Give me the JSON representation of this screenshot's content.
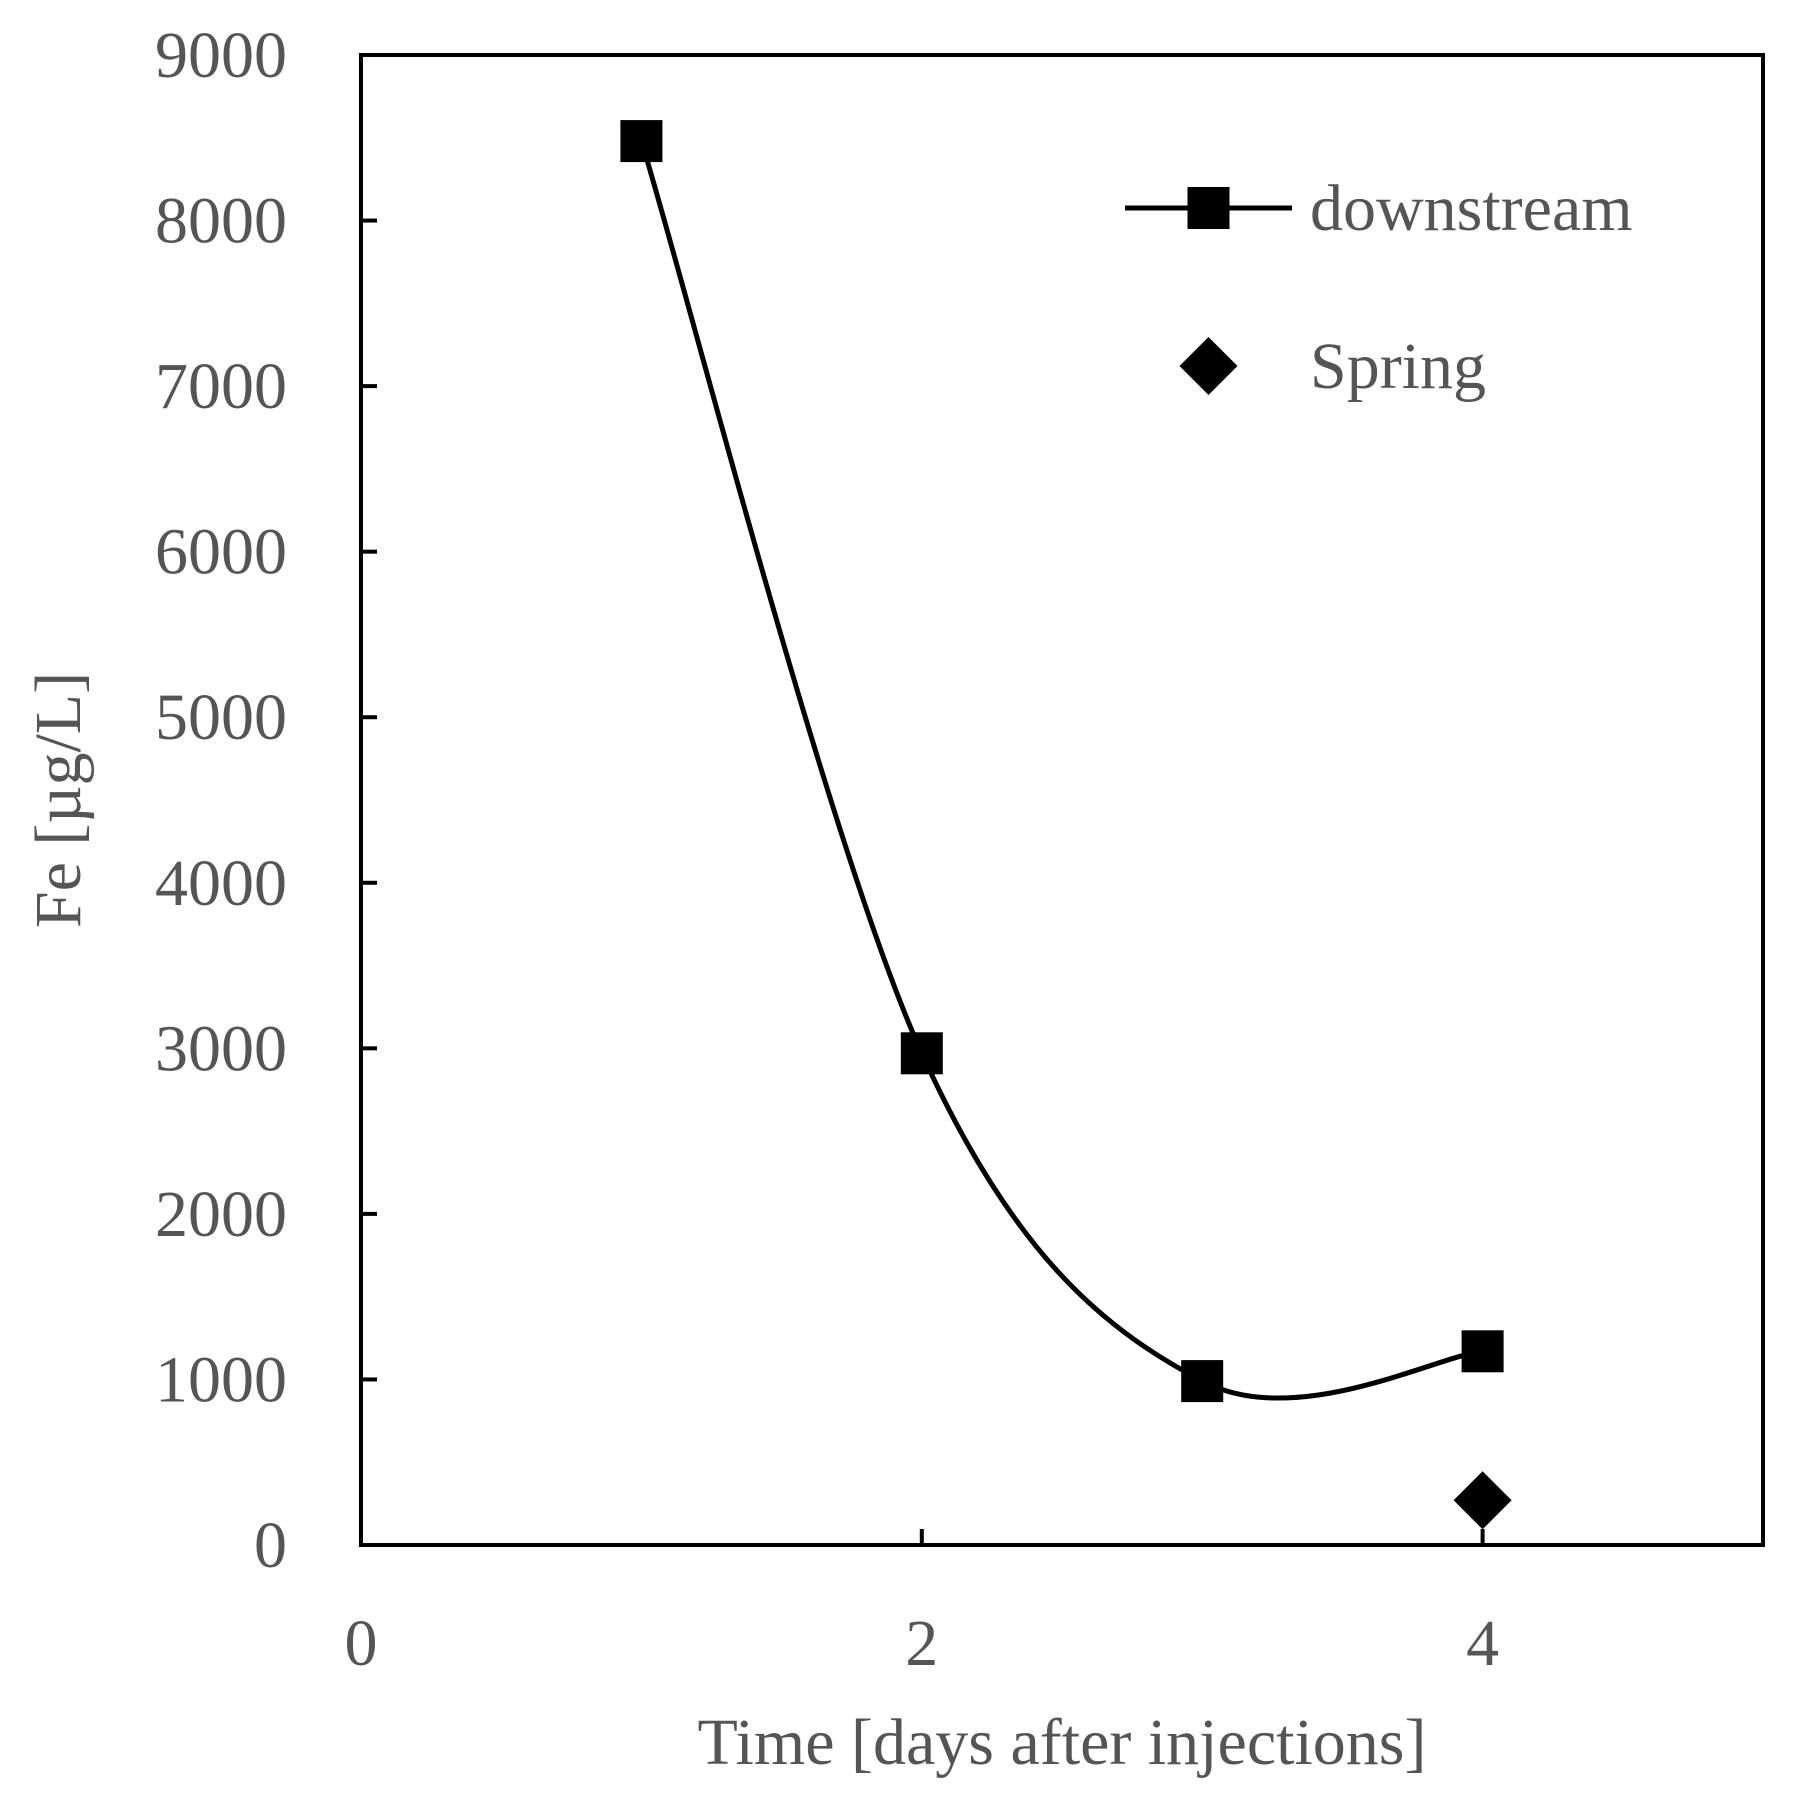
{
  "chart_data": {
    "type": "scatter",
    "xlabel": "Time [days after injections]",
    "ylabel": "Fe [µg/L]",
    "xlim": [
      0,
      5
    ],
    "ylim": [
      0,
      9000
    ],
    "x_ticks": [
      0,
      2,
      4
    ],
    "y_ticks": [
      0,
      1000,
      2000,
      3000,
      4000,
      5000,
      6000,
      7000,
      8000,
      9000
    ],
    "grid": false,
    "legend_position": "top-right",
    "series": [
      {
        "name": "downstream",
        "marker": "square",
        "line": "smooth",
        "color": "#000000",
        "x": [
          1,
          2,
          3,
          4
        ],
        "y": [
          8480,
          2970,
          990,
          1170
        ]
      },
      {
        "name": "Spring",
        "marker": "diamond",
        "line": "none",
        "color": "#000000",
        "x": [
          4
        ],
        "y": [
          270
        ]
      }
    ]
  }
}
